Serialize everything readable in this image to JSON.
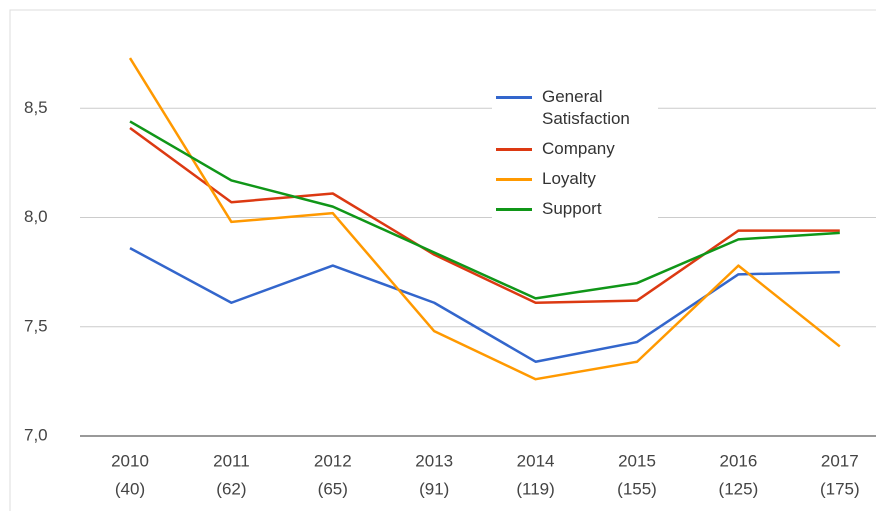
{
  "chart_data": {
    "type": "line",
    "categories": [
      [
        "2010",
        "(40)"
      ],
      [
        "2011",
        "(62)"
      ],
      [
        "2012",
        "(65)"
      ],
      [
        "2013",
        "(91)"
      ],
      [
        "2014",
        "(119)"
      ],
      [
        "2015",
        "(155)"
      ],
      [
        "2016",
        "(125)"
      ],
      [
        "2017",
        "(175)"
      ]
    ],
    "series": [
      {
        "name": "General Satisfaction",
        "color": "#3366cc",
        "values": [
          7.86,
          7.61,
          7.78,
          7.61,
          7.34,
          7.43,
          7.74,
          7.75
        ]
      },
      {
        "name": "Company",
        "color": "#dc3912",
        "values": [
          8.41,
          8.07,
          8.11,
          7.83,
          7.61,
          7.62,
          7.94,
          7.94
        ]
      },
      {
        "name": "Loyalty",
        "color": "#ff9900",
        "values": [
          8.73,
          7.98,
          8.02,
          7.48,
          7.26,
          7.34,
          7.78,
          7.41
        ]
      },
      {
        "name": "Support",
        "color": "#109618",
        "values": [
          8.44,
          8.17,
          8.05,
          7.84,
          7.63,
          7.7,
          7.9,
          7.93
        ]
      }
    ],
    "ylim": [
      7.0,
      8.95
    ],
    "yticks": [
      {
        "value": 7.0,
        "label": "7,0"
      },
      {
        "value": 7.5,
        "label": "7,5"
      },
      {
        "value": 8.0,
        "label": "8,0"
      },
      {
        "value": 8.5,
        "label": "8,5"
      }
    ],
    "grid": true,
    "legend": "top-right"
  }
}
